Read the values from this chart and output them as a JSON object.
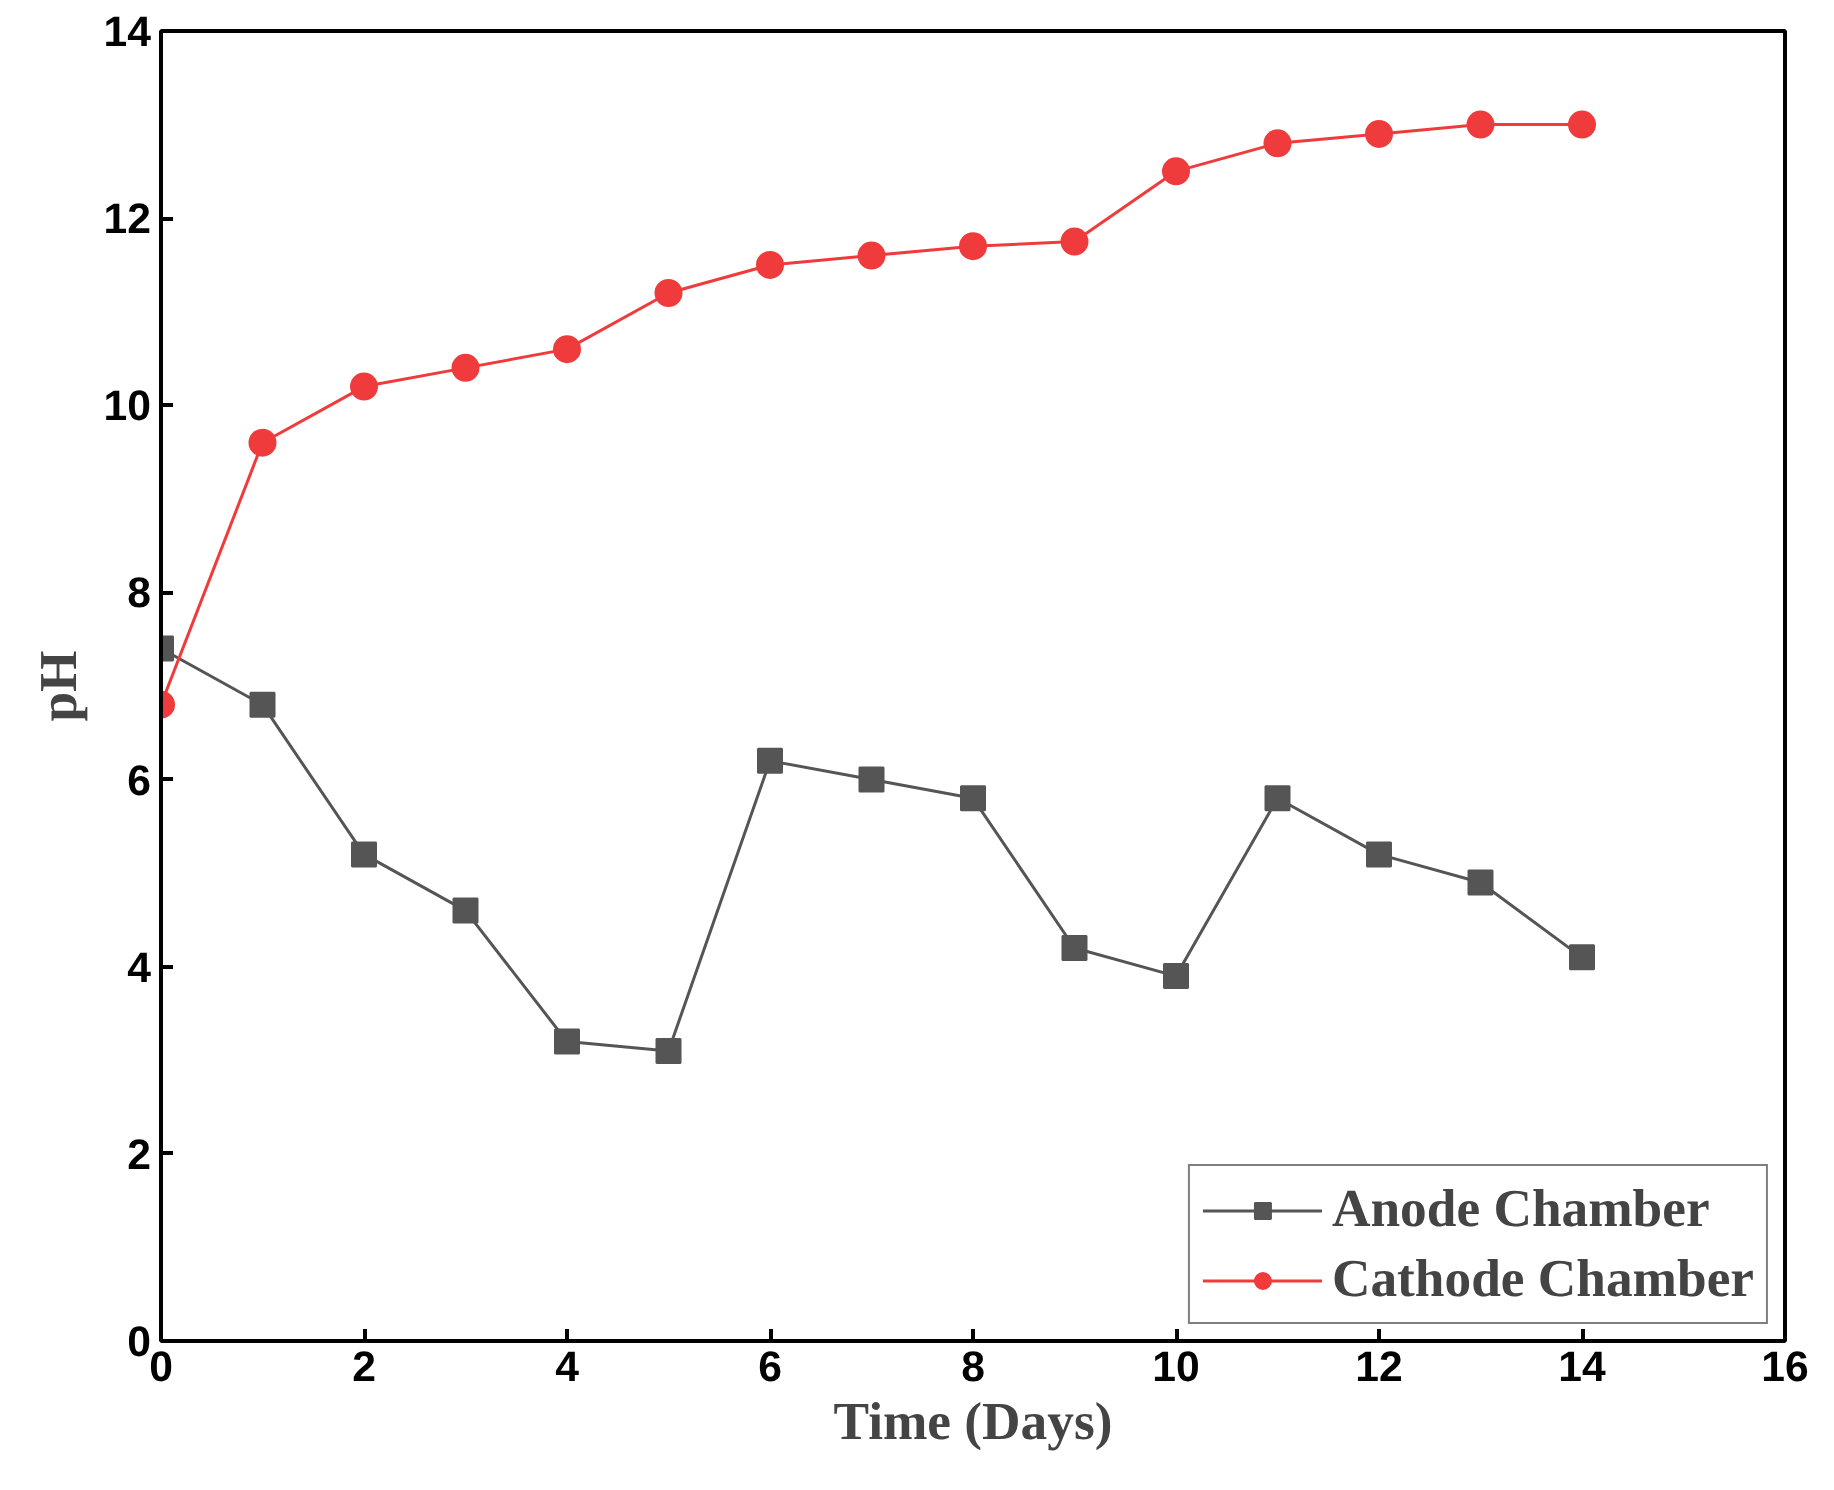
{
  "chart_data": {
    "type": "line",
    "xlabel": "Time (Days)",
    "ylabel": "pH",
    "x": [
      0,
      1,
      2,
      3,
      4,
      5,
      6,
      7,
      8,
      9,
      10,
      11,
      12,
      13,
      14
    ],
    "series": [
      {
        "name": "Anode Chamber",
        "color": "#555555",
        "marker": "square",
        "values": [
          7.4,
          6.8,
          5.2,
          4.6,
          3.2,
          3.1,
          6.2,
          6.0,
          5.8,
          4.2,
          3.9,
          5.8,
          5.2,
          4.9,
          4.1
        ]
      },
      {
        "name": "Cathode Chamber",
        "color": "#ef3b3b",
        "marker": "circle",
        "values": [
          6.8,
          9.6,
          10.2,
          10.4,
          10.6,
          11.2,
          11.5,
          11.6,
          11.7,
          11.75,
          12.5,
          12.8,
          12.9,
          13.0,
          13.0
        ]
      }
    ],
    "xlim": [
      0,
      16
    ],
    "xticks": [
      0,
      2,
      4,
      6,
      8,
      10,
      12,
      14,
      16
    ],
    "ylim": [
      0,
      14
    ],
    "yticks": [
      0,
      2,
      4,
      6,
      8,
      10,
      12,
      14
    ],
    "grid": false,
    "legend": "bottom right",
    "line_style": "solid"
  }
}
